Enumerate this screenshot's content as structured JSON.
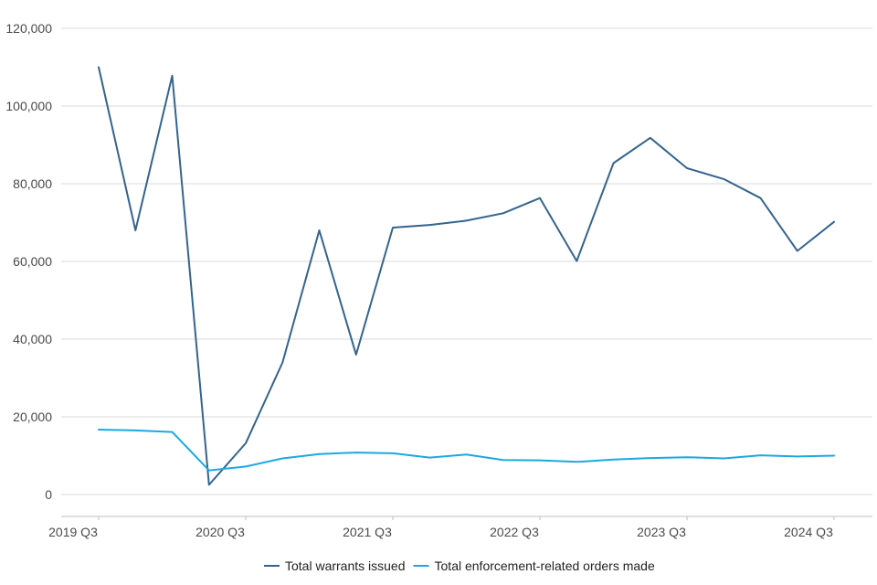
{
  "chart_data": {
    "type": "line",
    "title": "",
    "xlabel": "",
    "ylabel": "",
    "ylim": [
      0,
      120000
    ],
    "y_ticks": [
      0,
      20000,
      40000,
      60000,
      80000,
      100000,
      120000
    ],
    "y_tick_labels": [
      "0",
      "20,000",
      "40,000",
      "60,000",
      "80,000",
      "100,000",
      "120,000"
    ],
    "x": [
      "2019 Q3",
      "2019 Q4",
      "2020 Q1",
      "2020 Q2",
      "2020 Q3",
      "2020 Q4",
      "2021 Q1",
      "2021 Q2",
      "2021 Q3",
      "2021 Q4",
      "2022 Q1",
      "2022 Q2",
      "2022 Q3",
      "2022 Q4",
      "2023 Q1",
      "2023 Q2",
      "2023 Q3",
      "2023 Q4",
      "2024 Q1",
      "2024 Q2",
      "2024 Q3"
    ],
    "x_tick_labels": [
      "2019 Q3",
      "2020 Q3",
      "2021 Q3",
      "2022 Q3",
      "2023 Q3",
      "2024 Q3"
    ],
    "grid": true,
    "legend_position": "bottom",
    "series": [
      {
        "name": "Total warrants issued",
        "color": "#35648e",
        "values": [
          110000,
          68000,
          107800,
          2500,
          13200,
          34000,
          68000,
          36000,
          68700,
          69400,
          70500,
          72400,
          76300,
          60100,
          85300,
          91800,
          84000,
          81200,
          76300,
          62700,
          70200
        ]
      },
      {
        "name": "Total enforcement-related orders made",
        "color": "#1ba9e1",
        "values": [
          16700,
          16500,
          16100,
          6200,
          7200,
          9300,
          10400,
          10800,
          10600,
          9500,
          10300,
          8900,
          8800,
          8400,
          9000,
          9400,
          9600,
          9300,
          10100,
          9800,
          10000
        ]
      }
    ]
  }
}
